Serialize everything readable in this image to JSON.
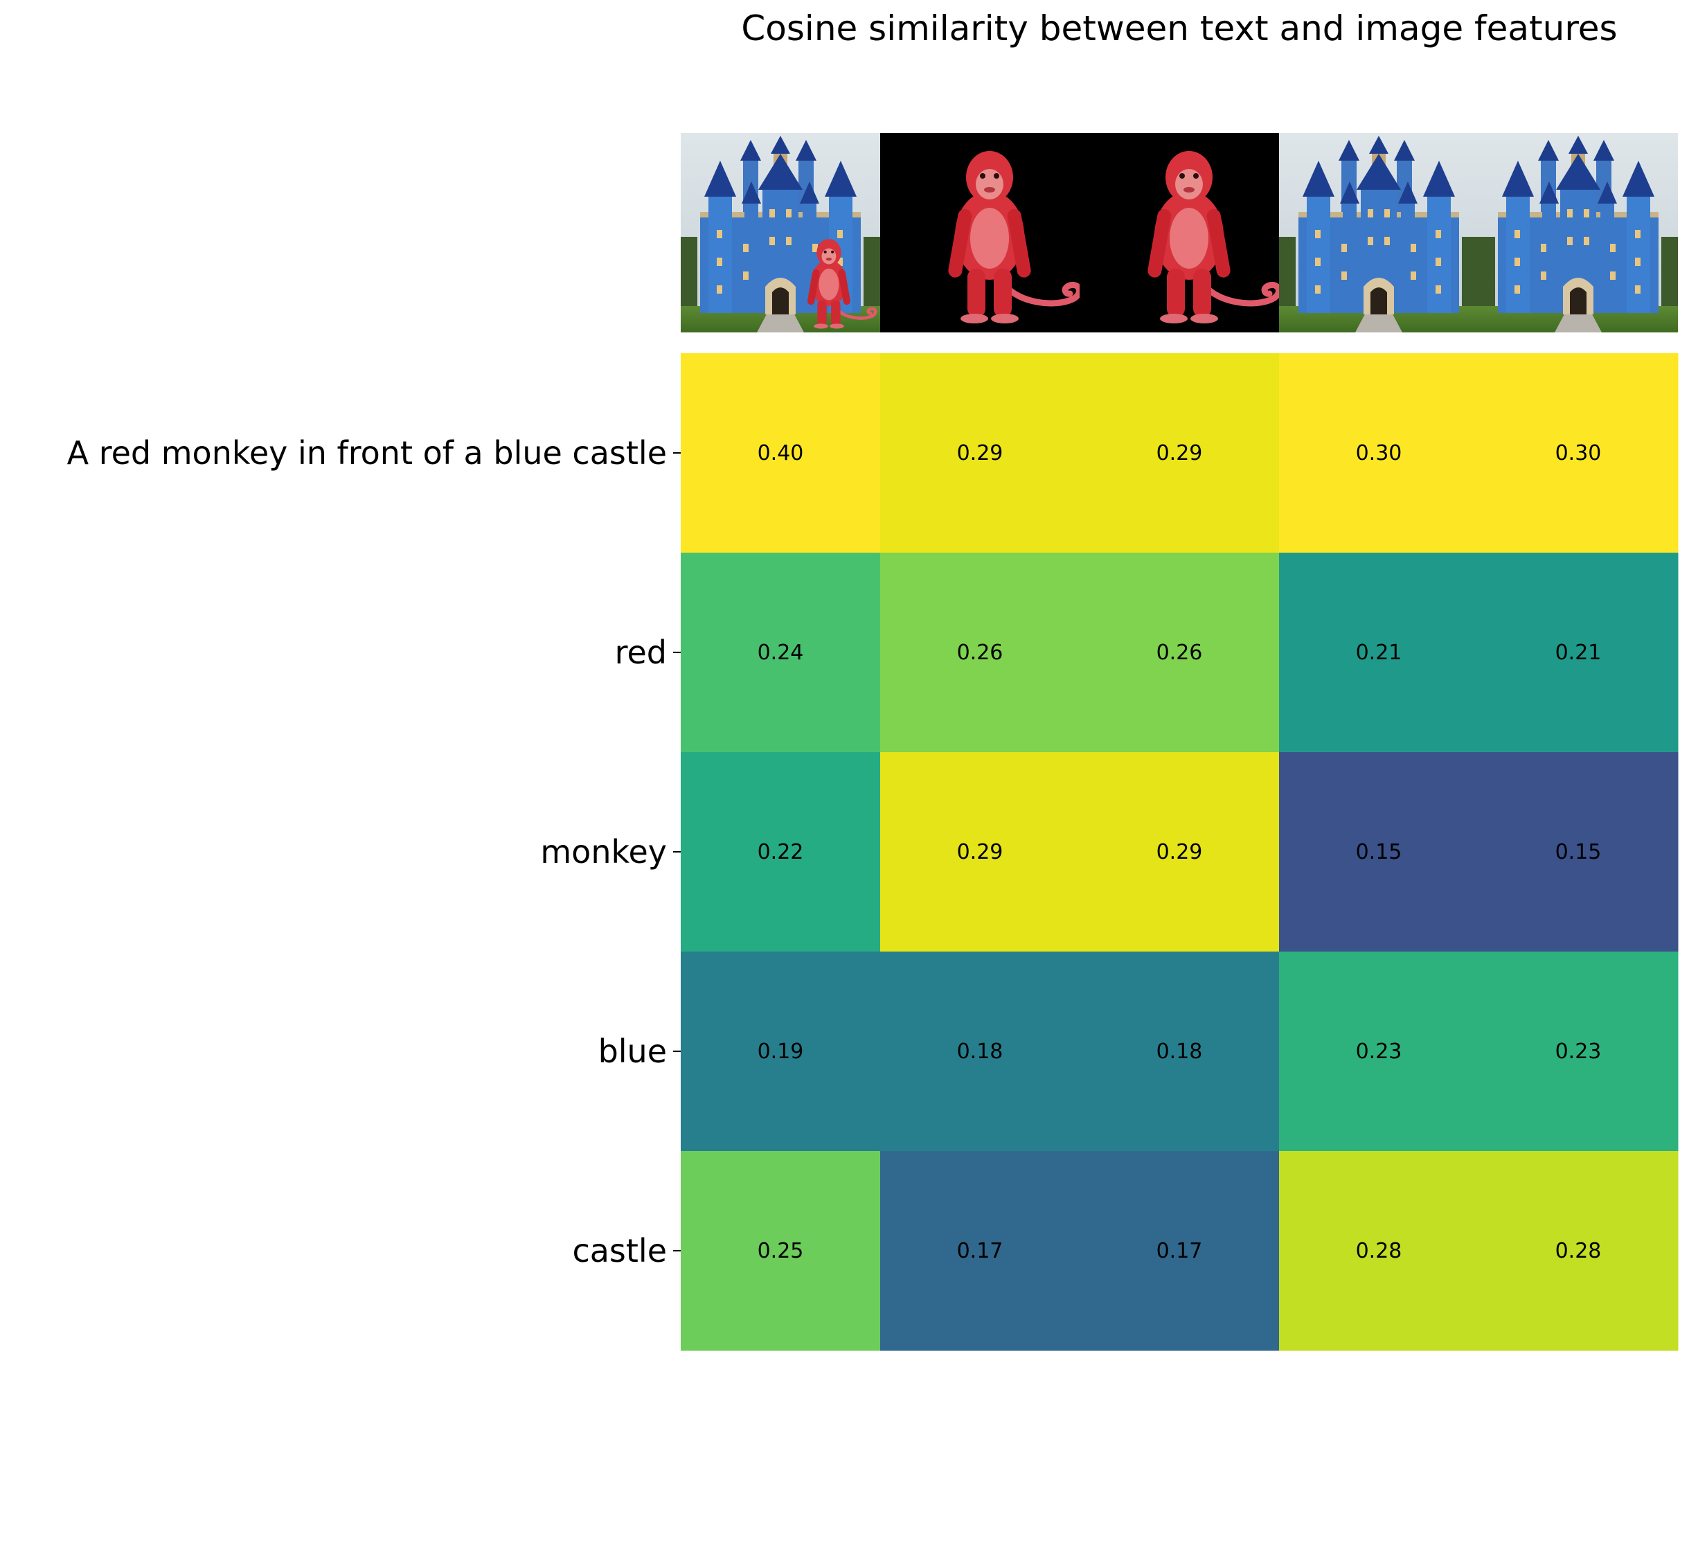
{
  "chart_data": {
    "type": "heatmap",
    "title": "Cosine similarity between text and image features",
    "rows": [
      "A red monkey in front of a blue castle",
      "red",
      "monkey",
      "blue",
      "castle"
    ],
    "columns": [
      {
        "image": "castle-with-monkey"
      },
      {
        "image": "red-monkey"
      },
      {
        "image": "red-monkey"
      },
      {
        "image": "blue-castle"
      },
      {
        "image": "blue-castle"
      }
    ],
    "values": [
      [
        0.4,
        0.29,
        0.29,
        0.3,
        0.3
      ],
      [
        0.24,
        0.26,
        0.26,
        0.21,
        0.21
      ],
      [
        0.22,
        0.29,
        0.29,
        0.15,
        0.15
      ],
      [
        0.19,
        0.18,
        0.18,
        0.23,
        0.23
      ],
      [
        0.25,
        0.17,
        0.17,
        0.28,
        0.28
      ]
    ],
    "value_labels": [
      [
        "0.40",
        "0.29",
        "0.29",
        "0.30",
        "0.30"
      ],
      [
        "0.24",
        "0.26",
        "0.26",
        "0.21",
        "0.21"
      ],
      [
        "0.22",
        "0.29",
        "0.29",
        "0.15",
        "0.15"
      ],
      [
        "0.19",
        "0.18",
        "0.18",
        "0.23",
        "0.23"
      ],
      [
        "0.25",
        "0.17",
        "0.17",
        "0.28",
        "0.28"
      ]
    ],
    "colormap": "viridis",
    "colors": [
      [
        "#fde725",
        "#ebe51a",
        "#ebe51a",
        "#fde725",
        "#fde725"
      ],
      [
        "#48c16e",
        "#7fd34e",
        "#7fd34e",
        "#1f9a8a",
        "#1f9a8a"
      ],
      [
        "#25ac82",
        "#e5e419",
        "#e5e419",
        "#3b528b",
        "#3b528b"
      ],
      [
        "#277f8e",
        "#277f8e",
        "#277f8e",
        "#2db27d",
        "#2db27d"
      ],
      [
        "#6ccd5a",
        "#31688e",
        "#31688e",
        "#c2df23",
        "#c2df23"
      ]
    ],
    "grid": false,
    "legend": "none"
  }
}
